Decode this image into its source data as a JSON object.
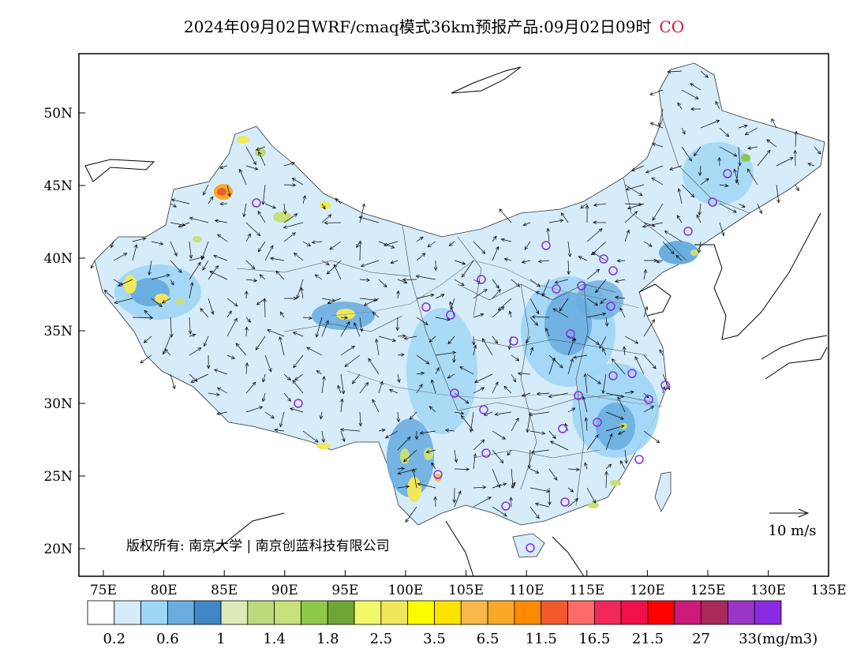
{
  "header": {
    "title": "2024年09月02日WRF/cmaq模式36km预报产品:09月02日09时",
    "species": "CO"
  },
  "map": {
    "lat_labels": [
      "50N",
      "45N",
      "40N",
      "35N",
      "30N",
      "25N",
      "20N"
    ],
    "lon_labels": [
      "75E",
      "80E",
      "85E",
      "90E",
      "95E",
      "100E",
      "105E",
      "110E",
      "115E",
      "120E",
      "125E",
      "130E",
      "135E"
    ],
    "copyright": "版权所有: 南京大学 | 南京创蓝科技有限公司",
    "wind_scale_label": "10 m/s",
    "colors": {
      "frame": "#000000",
      "water": "#ffffff",
      "station_marker": "#8a2be2"
    }
  },
  "legend": {
    "colors": [
      "#ffffff",
      "#d6ecfa",
      "#9ed6f5",
      "#6aaee0",
      "#3f87c5",
      "#dbeab8",
      "#bcd97d",
      "#c6e07a",
      "#8ec84a",
      "#6ea636",
      "#f3f76a",
      "#f0e85a",
      "#fffc00",
      "#ffe300",
      "#f8b94a",
      "#f8a828",
      "#ff8a00",
      "#f25a2c",
      "#ff6b6b",
      "#f2285a",
      "#f0104a",
      "#ff0000",
      "#cc1a7a",
      "#a82a5a",
      "#9a35c8",
      "#8a2be2"
    ],
    "labels": [
      "0.2",
      "0.6",
      "1",
      "1.4",
      "1.8",
      "2.5",
      "3.5",
      "6.5",
      "11.5",
      "16.5",
      "21.5",
      "27",
      "33(mg/m3)"
    ]
  }
}
